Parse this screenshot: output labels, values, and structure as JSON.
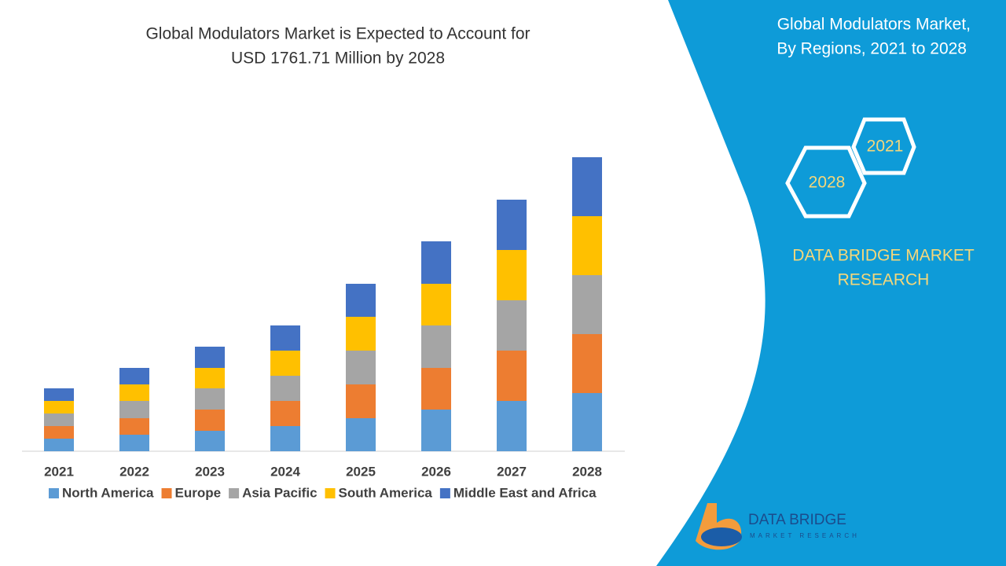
{
  "panel": {
    "title_line1": "Global Modulators Market,",
    "title_line2": "By Regions, 2021 to 2028",
    "hex_a": "2021",
    "hex_b": "2028",
    "brand_line1": "DATA BRIDGE MARKET",
    "brand_line2": "RESEARCH",
    "logo_name": "DATA BRIDGE",
    "logo_sub": "MARKET RESEARCH"
  },
  "chart_data": {
    "type": "bar",
    "stacked": true,
    "title_line1": "Global Modulators Market is Expected to Account for",
    "title_line2": "USD 1761.71 Million by 2028",
    "categories": [
      "2021",
      "2022",
      "2023",
      "2024",
      "2025",
      "2026",
      "2027",
      "2028"
    ],
    "series": [
      {
        "name": "North America",
        "color": "#5b9bd5",
        "values": [
          16,
          21,
          26,
          32,
          42,
          53,
          64,
          74
        ]
      },
      {
        "name": "Europe",
        "color": "#ed7d31",
        "values": [
          16,
          21,
          27,
          32,
          43,
          53,
          64,
          75
        ]
      },
      {
        "name": "Asia Pacific",
        "color": "#a5a5a5",
        "values": [
          16,
          22,
          27,
          32,
          43,
          54,
          64,
          75
        ]
      },
      {
        "name": "South America",
        "color": "#ffc000",
        "values": [
          16,
          21,
          26,
          32,
          43,
          53,
          64,
          75
        ]
      },
      {
        "name": "Middle East and Africa",
        "color": "#4472c4",
        "values": [
          16,
          21,
          27,
          32,
          42,
          54,
          64,
          75
        ]
      }
    ]
  }
}
